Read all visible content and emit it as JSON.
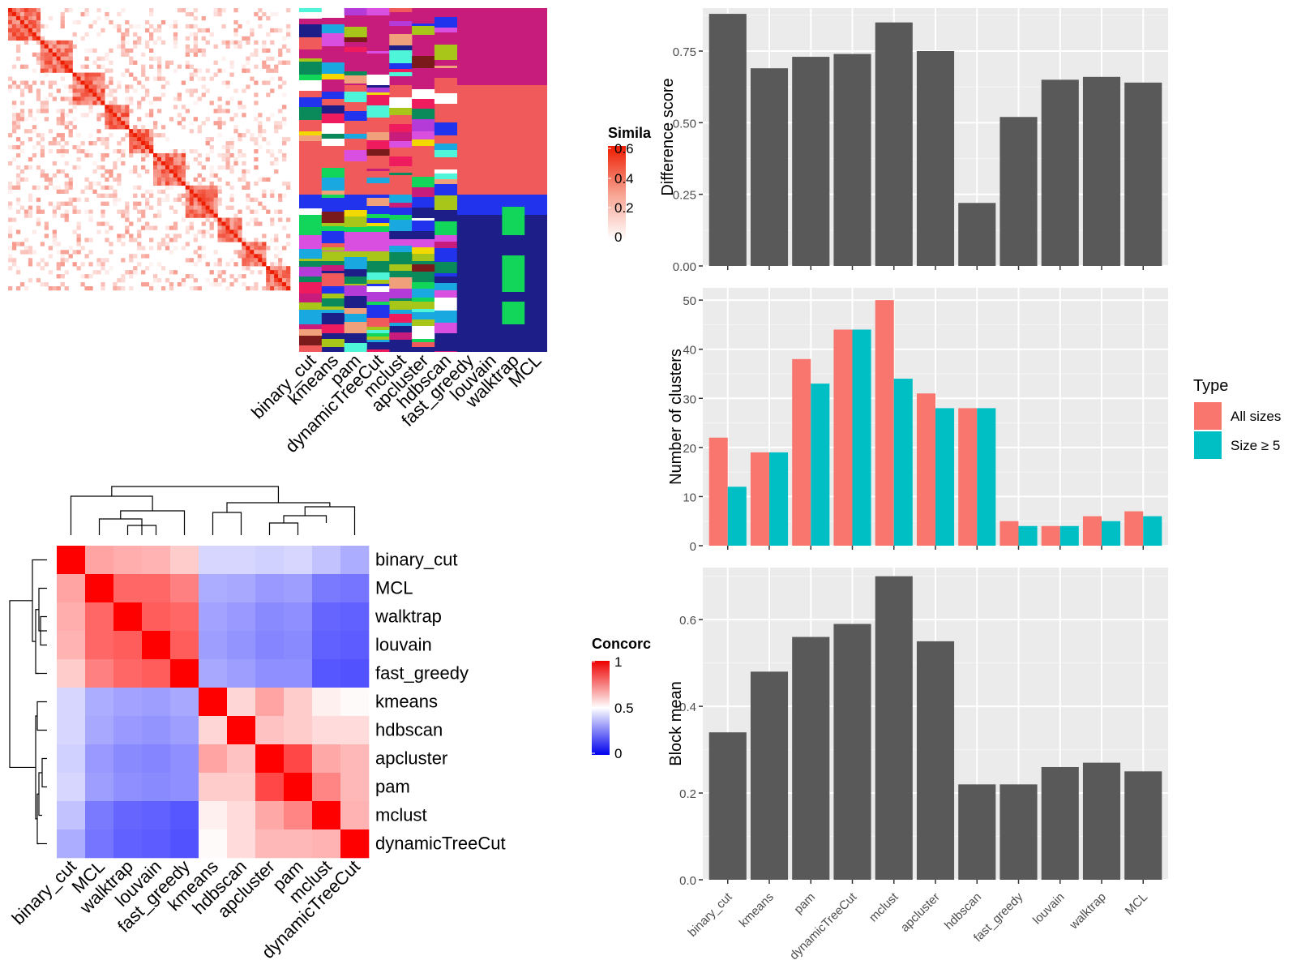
{
  "methods_order": [
    "binary_cut",
    "kmeans",
    "pam",
    "dynamicTreeCut",
    "mclust",
    "apcluster",
    "hdbscan",
    "fast_greedy",
    "louvain",
    "walktrap",
    "MCL"
  ],
  "similarity_legend": {
    "title": "Simila",
    "ticks": [
      "0.6",
      "0.4",
      "0.2",
      "0"
    ]
  },
  "concordance_legend": {
    "title": "Concorc",
    "ticks": [
      "1",
      "0.5",
      "0"
    ]
  },
  "partition_panel": {
    "column_labels": [
      "binary_cut",
      "kmeans",
      "pam",
      "dynamicTreeCut",
      "mclust",
      "apcluster",
      "hdbscan",
      "fast_greedy",
      "louvain",
      "walktrap",
      "MCL"
    ]
  },
  "concordance_heatmap": {
    "labels": [
      "binary_cut",
      "MCL",
      "walktrap",
      "louvain",
      "fast_greedy",
      "kmeans",
      "hdbscan",
      "apcluster",
      "pam",
      "mclust",
      "dynamicTreeCut"
    ],
    "values": [
      [
        1.0,
        0.68,
        0.66,
        0.65,
        0.6,
        0.42,
        0.42,
        0.41,
        0.42,
        0.38,
        0.34
      ],
      [
        0.68,
        1.0,
        0.8,
        0.8,
        0.75,
        0.34,
        0.33,
        0.3,
        0.31,
        0.24,
        0.23
      ],
      [
        0.66,
        0.8,
        1.0,
        0.82,
        0.8,
        0.32,
        0.3,
        0.27,
        0.28,
        0.2,
        0.19
      ],
      [
        0.65,
        0.8,
        0.82,
        1.0,
        0.82,
        0.31,
        0.29,
        0.26,
        0.27,
        0.19,
        0.18
      ],
      [
        0.6,
        0.75,
        0.8,
        0.82,
        1.0,
        0.33,
        0.31,
        0.28,
        0.28,
        0.17,
        0.16
      ],
      [
        0.42,
        0.34,
        0.32,
        0.31,
        0.33,
        1.0,
        0.58,
        0.68,
        0.6,
        0.53,
        0.51
      ],
      [
        0.42,
        0.33,
        0.3,
        0.29,
        0.31,
        0.58,
        1.0,
        0.62,
        0.6,
        0.57,
        0.57
      ],
      [
        0.41,
        0.3,
        0.27,
        0.26,
        0.28,
        0.68,
        0.62,
        1.0,
        0.86,
        0.67,
        0.64
      ],
      [
        0.42,
        0.31,
        0.28,
        0.27,
        0.28,
        0.6,
        0.6,
        0.86,
        1.0,
        0.74,
        0.64
      ],
      [
        0.38,
        0.24,
        0.2,
        0.19,
        0.17,
        0.53,
        0.57,
        0.67,
        0.74,
        1.0,
        0.65
      ],
      [
        0.34,
        0.23,
        0.19,
        0.18,
        0.16,
        0.51,
        0.57,
        0.64,
        0.64,
        0.65,
        1.0
      ]
    ]
  },
  "chart_data": [
    {
      "type": "bar",
      "categories": [
        "binary_cut",
        "kmeans",
        "pam",
        "dynamicTreeCut",
        "mclust",
        "apcluster",
        "hdbscan",
        "fast_greedy",
        "louvain",
        "walktrap",
        "MCL"
      ],
      "values": [
        0.88,
        0.69,
        0.73,
        0.74,
        0.85,
        0.75,
        0.22,
        0.52,
        0.65,
        0.66,
        0.64
      ],
      "ylabel": "Difference score",
      "ylim": [
        0,
        0.9
      ],
      "yticks": [
        "0.00",
        "0.25",
        "0.50",
        "0.75"
      ],
      "color": "#595959"
    },
    {
      "type": "bar",
      "categories": [
        "binary_cut",
        "kmeans",
        "pam",
        "dynamicTreeCut",
        "mclust",
        "apcluster",
        "hdbscan",
        "fast_greedy",
        "louvain",
        "walktrap",
        "MCL"
      ],
      "series": [
        {
          "name": "All sizes",
          "values": [
            22,
            19,
            38,
            44,
            50,
            31,
            28,
            5,
            4,
            6,
            7
          ],
          "color": "#F8766D"
        },
        {
          "name": "Size ≥ 5",
          "values": [
            12,
            19,
            33,
            44,
            34,
            28,
            28,
            4,
            4,
            5,
            6
          ],
          "color": "#00BFC4"
        }
      ],
      "ylabel": "Number of clusters",
      "ylim": [
        0,
        52.5
      ],
      "yticks": [
        "0",
        "10",
        "20",
        "30",
        "40",
        "50"
      ],
      "legend": {
        "title": "Type",
        "position": "right"
      }
    },
    {
      "type": "bar",
      "categories": [
        "binary_cut",
        "kmeans",
        "pam",
        "dynamicTreeCut",
        "mclust",
        "apcluster",
        "hdbscan",
        "fast_greedy",
        "louvain",
        "walktrap",
        "MCL"
      ],
      "values": [
        0.34,
        0.48,
        0.56,
        0.59,
        0.7,
        0.55,
        0.22,
        0.22,
        0.26,
        0.27,
        0.25
      ],
      "ylabel": "Block mean",
      "ylim": [
        0,
        0.72
      ],
      "yticks": [
        "0.0",
        "0.2",
        "0.4",
        "0.6"
      ],
      "color": "#595959"
    }
  ]
}
